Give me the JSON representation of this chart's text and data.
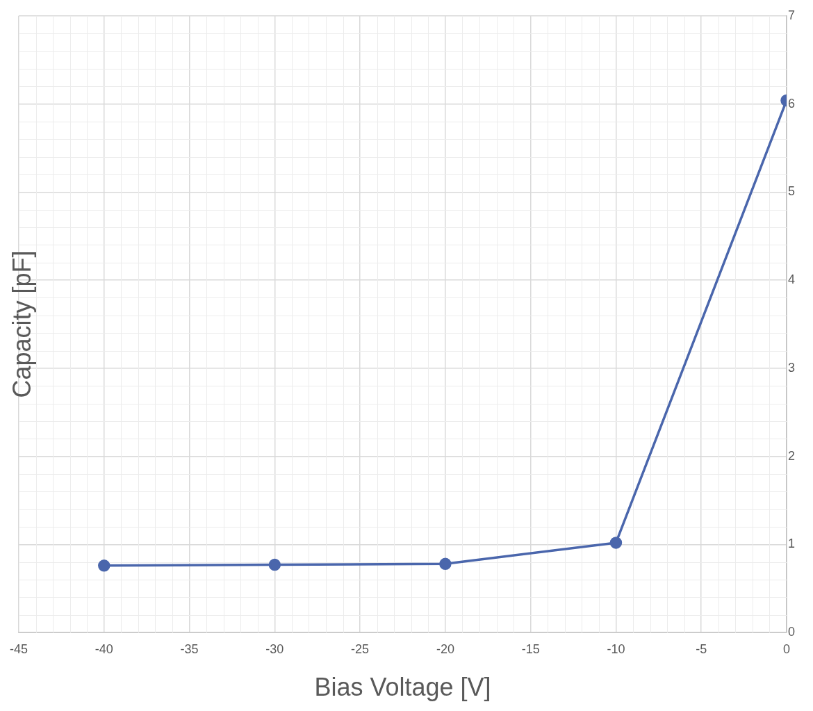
{
  "chart_data": {
    "type": "line",
    "xlabel": "Bias Voltage [V]",
    "ylabel": "Capacity [pF]",
    "x": [
      -40,
      -30,
      -20,
      -10,
      0
    ],
    "series": [
      {
        "color": "#4a66ac",
        "values": [
          0.76,
          0.77,
          0.78,
          1.02,
          6.04
        ]
      }
    ],
    "xlim": [
      -45,
      0
    ],
    "xticks": [
      -45,
      -40,
      -35,
      -30,
      -25,
      -20,
      -15,
      -10,
      -5,
      0
    ],
    "ylim": [
      0,
      7
    ],
    "yticks": [
      0,
      1,
      2,
      3,
      4,
      5,
      6,
      7
    ],
    "grid": true,
    "marker": "circle",
    "line_style": "solid"
  }
}
